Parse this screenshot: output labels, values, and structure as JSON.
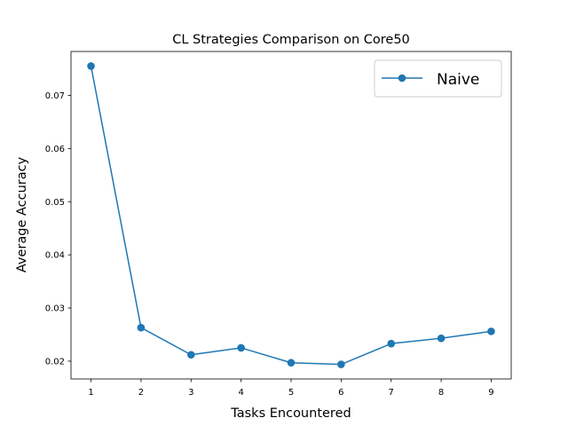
{
  "chart_data": {
    "type": "line",
    "title": "CL Strategies Comparison on Core50",
    "xlabel": "Tasks Encountered",
    "ylabel": "Average Accuracy",
    "x": [
      1,
      2,
      3,
      4,
      5,
      6,
      7,
      8,
      9
    ],
    "series": [
      {
        "name": "Naive",
        "values": [
          0.0755,
          0.0263,
          0.0212,
          0.0225,
          0.0197,
          0.0194,
          0.0233,
          0.0243,
          0.0256
        ],
        "color": "#1f77b4",
        "marker": "circle"
      }
    ],
    "xticks": [
      "1",
      "2",
      "3",
      "4",
      "5",
      "6",
      "7",
      "8",
      "9"
    ],
    "yticks": [
      0.02,
      0.03,
      0.04,
      0.05,
      0.06,
      0.07
    ],
    "ytick_labels": [
      "0.02",
      "0.03",
      "0.04",
      "0.05",
      "0.06",
      "0.07"
    ],
    "xlim": [
      0.6,
      9.4
    ],
    "ylim": [
      0.01665,
      0.07825
    ],
    "grid": false,
    "legend_position": "top-right"
  }
}
